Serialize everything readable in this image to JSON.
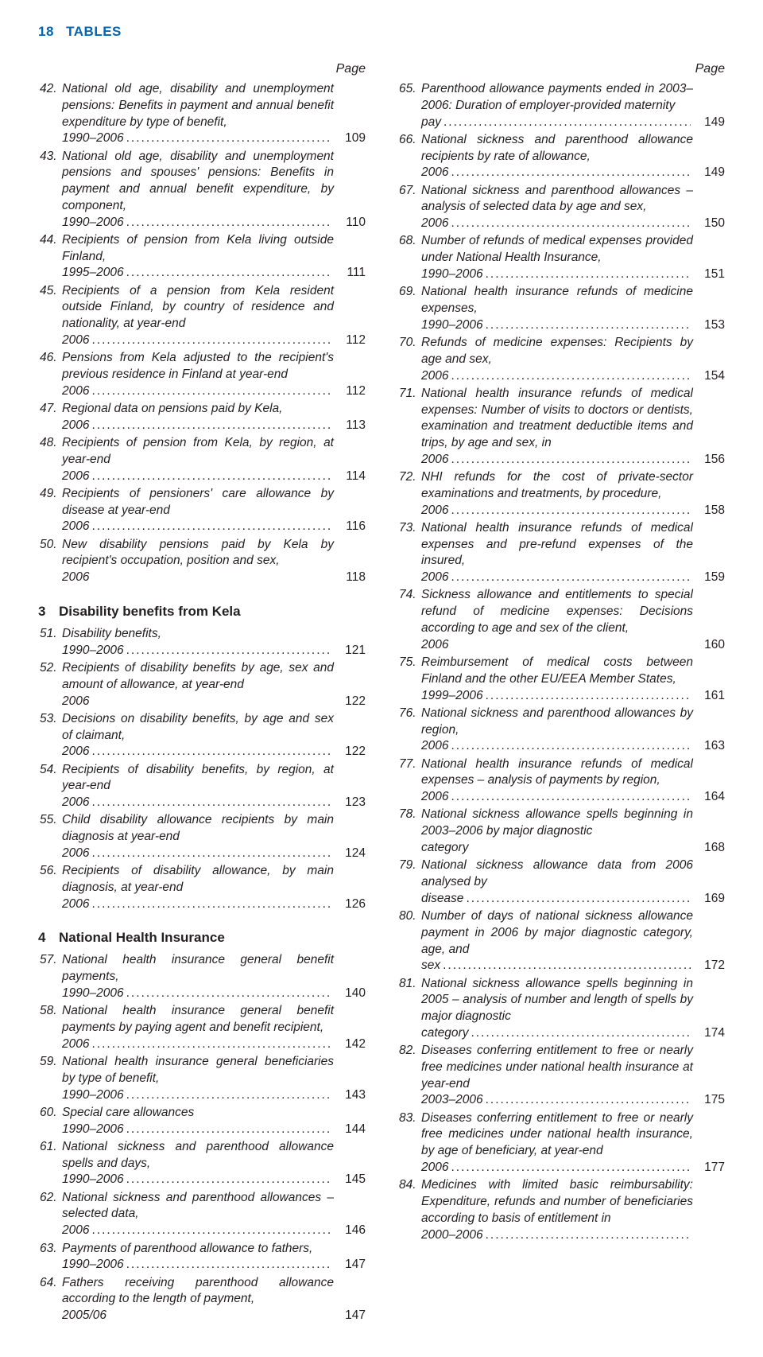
{
  "header": {
    "page_num": "18",
    "label": "TABLES"
  },
  "page_word": "Page",
  "dots": "..........................................................................................",
  "sections": [
    {
      "num": "3",
      "title": "Disability benefits from Kela"
    },
    {
      "num": "4",
      "title": "National Health Insurance"
    }
  ],
  "left": [
    {
      "n": "42.",
      "t": "National old age, disability and unemployment pensions: Benefits in payment and annual benefit expenditure by type of benefit, 1990–2006",
      "p": "109"
    },
    {
      "n": "43.",
      "t": "National old age, disability and unemployment pensions and spouses' pensions: Benefits in payment and annual benefit expenditure, by component, 1990–2006",
      "p": "110"
    },
    {
      "n": "44.",
      "t": "Recipients of pension from Kela living outside Finland, 1995–2006",
      "p": "111"
    },
    {
      "n": "45.",
      "t": "Recipients of a pension from Kela resident outside Finland, by country of residence and nationality, at year-end 2006",
      "p": "112"
    },
    {
      "n": "46.",
      "t": "Pensions from Kela adjusted to the recipient's previous residence in Finland at year-end 2006",
      "p": "112"
    },
    {
      "n": "47.",
      "t": "Regional data on pensions paid by Kela, 2006",
      "p": "113"
    },
    {
      "n": "48.",
      "t": "Recipients of pension from Kela, by region, at year-end 2006",
      "p": "114"
    },
    {
      "n": "49.",
      "t": "Recipients of pensioners' care allowance by disease at year-end 2006",
      "p": "116"
    },
    {
      "n": "50.",
      "t": "New disability pensions paid by Kela by recipient's occupation, position and sex, 2006",
      "p": "118",
      "nodots": true
    },
    {
      "section": 0
    },
    {
      "n": "51.",
      "t": "Disability benefits, 1990–2006",
      "p": "121"
    },
    {
      "n": "52.",
      "t": "Recipients of disability benefits by age, sex and amount of allowance, at year-end 2006",
      "p": "122",
      "nodots": true
    },
    {
      "n": "53.",
      "t": "Decisions on disability benefits, by age and sex of claimant, 2006",
      "p": "122"
    },
    {
      "n": "54.",
      "t": "Recipients of disability benefits, by region, at year-end 2006",
      "p": "123"
    },
    {
      "n": "55.",
      "t": "Child disability allowance recipients by main diagnosis at year-end 2006",
      "p": "124"
    },
    {
      "n": "56.",
      "t": "Recipients of disability allowance, by main diagnosis, at year-end 2006",
      "p": "126"
    },
    {
      "section": 1
    },
    {
      "n": "57.",
      "t": "National health insurance general benefit payments, 1990–2006",
      "p": "140"
    },
    {
      "n": "58.",
      "t": "National health insurance general benefit payments by paying agent and benefit recipient, 2006",
      "p": "142"
    },
    {
      "n": "59.",
      "t": "National health insurance general beneficiaries by type of benefit, 1990–2006",
      "p": "143"
    },
    {
      "n": "60.",
      "t": "Special care allowances 1990–2006",
      "p": "144"
    },
    {
      "n": "61.",
      "t": "National sickness and parenthood allowance spells and days, 1990–2006",
      "p": "145"
    },
    {
      "n": "62.",
      "t": "National sickness and parenthood allowances – selected data, 2006",
      "p": "146"
    },
    {
      "n": "63.",
      "t": "Payments of parenthood allowance to fathers, 1990–2006",
      "p": "147"
    },
    {
      "n": "64.",
      "t": "Fathers receiving parenthood allowance according to the length of payment, 2005/06",
      "p": "147",
      "nodots": true
    }
  ],
  "right": [
    {
      "n": "65.",
      "t": "Parenthood allowance payments ended in 2003–2006: Duration of employer-provided maternity pay",
      "p": "149"
    },
    {
      "n": "66.",
      "t": "National sickness and parenthood allowance recipients by rate of allowance, 2006",
      "p": "149"
    },
    {
      "n": "67.",
      "t": "National sickness and parenthood allowances – analysis of selected data by age and sex, 2006",
      "p": "150"
    },
    {
      "n": "68.",
      "t": "Number of refunds of medical expenses provided under National Health Insurance, 1990–2006",
      "p": "151"
    },
    {
      "n": "69.",
      "t": "National health insurance refunds of medicine expenses, 1990–2006",
      "p": "153"
    },
    {
      "n": "70.",
      "t": "Refunds of medicine expenses: Recipients by age and sex, 2006",
      "p": "154"
    },
    {
      "n": "71.",
      "t": "National health insurance refunds of medical expenses: Number of visits to doctors or dentists, examination and treatment deductible items and trips, by age and sex, in 2006",
      "p": "156"
    },
    {
      "n": "72.",
      "t": "NHI refunds for the cost of private-sector examinations and treatments, by procedure, 2006",
      "p": "158"
    },
    {
      "n": "73.",
      "t": "National health insurance refunds of medical expenses and pre-refund expenses of the insured, 2006",
      "p": "159"
    },
    {
      "n": "74.",
      "t": "Sickness allowance and entitlements to special refund of medicine expenses: Decisions according to age and sex of the client, 2006",
      "p": "160",
      "nodots": true
    },
    {
      "n": "75.",
      "t": "Reimbursement of medical costs between Finland and the other EU/EEA Member States, 1999–2006",
      "p": "161"
    },
    {
      "n": "76.",
      "t": "National sickness and parenthood allowances by region, 2006",
      "p": "163"
    },
    {
      "n": "77.",
      "t": "National health insurance refunds of medical expenses – analysis of payments by region, 2006",
      "p": "164"
    },
    {
      "n": "78.",
      "t": "National sickness allowance spells beginning in 2003–2006 by major diagnostic category",
      "p": "168",
      "nodots": true
    },
    {
      "n": "79.",
      "t": "National sickness allowance data from 2006 analysed by disease",
      "p": "169"
    },
    {
      "n": "80.",
      "t": "Number of days of national sickness allowance payment in 2006 by major diagnostic category, age, and sex",
      "p": "172"
    },
    {
      "n": "81.",
      "t": "National sickness allowance spells beginning in 2005 – analysis of number and length of spells by major diagnostic category",
      "p": "174"
    },
    {
      "n": "82.",
      "t": "Diseases conferring entitlement to free or nearly free medicines under national health insurance at year-end 2003–2006",
      "p": "175"
    },
    {
      "n": "83.",
      "t": "Diseases conferring entitlement to free or nearly free medicines under national health insurance, by age of beneficiary, at year-end 2006",
      "p": "177"
    },
    {
      "n": "84.",
      "t": "Medicines with limited basic reimbursability: Expenditure, refunds and number of beneficiaries according to basis of entitlement in 2000–2006",
      "p": ""
    }
  ]
}
